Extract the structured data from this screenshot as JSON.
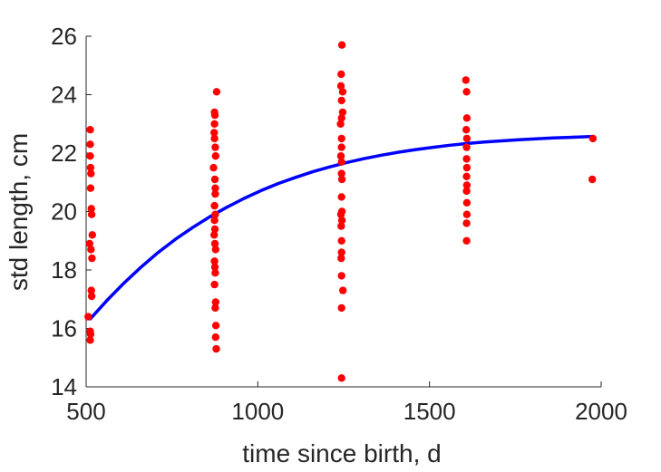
{
  "chart_data": {
    "type": "scatter",
    "xlabel": "time since birth, d",
    "ylabel": "std length, cm",
    "xlim": [
      500,
      2000
    ],
    "ylim": [
      14,
      26
    ],
    "xticks": [
      500,
      1000,
      1500,
      2000
    ],
    "yticks": [
      14,
      16,
      18,
      20,
      22,
      24,
      26
    ],
    "grid": false,
    "legend": "none",
    "colors": {
      "points": "#ff0000",
      "curve": "#0000ff",
      "axis": "#262626"
    },
    "series": [
      {
        "kind": "points",
        "points": [
          [
            512,
            22.8
          ],
          [
            512,
            22.3
          ],
          [
            512,
            21.9
          ],
          [
            513,
            21.5
          ],
          [
            514,
            21.3
          ],
          [
            513,
            20.8
          ],
          [
            515,
            20.1
          ],
          [
            516,
            19.9
          ],
          [
            518,
            19.2
          ],
          [
            510,
            18.9
          ],
          [
            514,
            18.7
          ],
          [
            517,
            18.4
          ],
          [
            515,
            17.3
          ],
          [
            516,
            17.1
          ],
          [
            506,
            16.4
          ],
          [
            512,
            15.9
          ],
          [
            513,
            15.8
          ],
          [
            512,
            15.6
          ],
          [
            880,
            24.1
          ],
          [
            874,
            23.4
          ],
          [
            875,
            23.3
          ],
          [
            874,
            23.0
          ],
          [
            873,
            22.7
          ],
          [
            874,
            22.5
          ],
          [
            876,
            22.2
          ],
          [
            877,
            21.9
          ],
          [
            871,
            21.5
          ],
          [
            875,
            21.1
          ],
          [
            876,
            20.8
          ],
          [
            876,
            20.6
          ],
          [
            874,
            20.2
          ],
          [
            876,
            19.9
          ],
          [
            874,
            19.7
          ],
          [
            875,
            19.4
          ],
          [
            873,
            19.2
          ],
          [
            875,
            18.9
          ],
          [
            877,
            18.7
          ],
          [
            874,
            18.3
          ],
          [
            875,
            18.1
          ],
          [
            876,
            17.9
          ],
          [
            874,
            17.5
          ],
          [
            877,
            16.9
          ],
          [
            876,
            16.7
          ],
          [
            878,
            16.1
          ],
          [
            877,
            15.7
          ],
          [
            879,
            15.3
          ],
          [
            1245,
            25.7
          ],
          [
            1243,
            24.7
          ],
          [
            1242,
            24.3
          ],
          [
            1247,
            24.1
          ],
          [
            1244,
            23.8
          ],
          [
            1247,
            23.4
          ],
          [
            1244,
            23.2
          ],
          [
            1241,
            23.0
          ],
          [
            1244,
            22.5
          ],
          [
            1244,
            22.2
          ],
          [
            1242,
            21.9
          ],
          [
            1244,
            21.7
          ],
          [
            1244,
            21.3
          ],
          [
            1245,
            21.1
          ],
          [
            1244,
            20.5
          ],
          [
            1245,
            20.0
          ],
          [
            1242,
            19.9
          ],
          [
            1245,
            19.7
          ],
          [
            1243,
            19.5
          ],
          [
            1244,
            19.0
          ],
          [
            1244,
            18.6
          ],
          [
            1243,
            18.4
          ],
          [
            1244,
            17.8
          ],
          [
            1248,
            17.3
          ],
          [
            1244,
            16.7
          ],
          [
            1244,
            14.3
          ],
          [
            1606,
            24.5
          ],
          [
            1608,
            24.1
          ],
          [
            1609,
            23.2
          ],
          [
            1607,
            22.8
          ],
          [
            1609,
            22.5
          ],
          [
            1608,
            22.2
          ],
          [
            1608,
            21.8
          ],
          [
            1609,
            21.5
          ],
          [
            1608,
            21.2
          ],
          [
            1609,
            20.9
          ],
          [
            1608,
            20.7
          ],
          [
            1609,
            20.3
          ],
          [
            1609,
            19.9
          ],
          [
            1608,
            19.6
          ],
          [
            1608,
            19.0
          ],
          [
            1976,
            22.5
          ],
          [
            1974,
            21.1
          ]
        ]
      },
      {
        "kind": "curve",
        "x": [
          510,
          560,
          610,
          660,
          710,
          760,
          810,
          860,
          910,
          960,
          1010,
          1060,
          1110,
          1160,
          1210,
          1260,
          1310,
          1360,
          1410,
          1460,
          1510,
          1560,
          1610,
          1660,
          1710,
          1760,
          1810,
          1860,
          1910,
          1975
        ],
        "y": [
          16.3,
          16.95,
          17.55,
          18.1,
          18.6,
          19.05,
          19.45,
          19.82,
          20.15,
          20.45,
          20.72,
          20.96,
          21.17,
          21.36,
          21.53,
          21.68,
          21.81,
          21.93,
          22.03,
          22.12,
          22.2,
          22.27,
          22.33,
          22.38,
          22.42,
          22.46,
          22.49,
          22.52,
          22.54,
          22.57
        ]
      }
    ]
  }
}
